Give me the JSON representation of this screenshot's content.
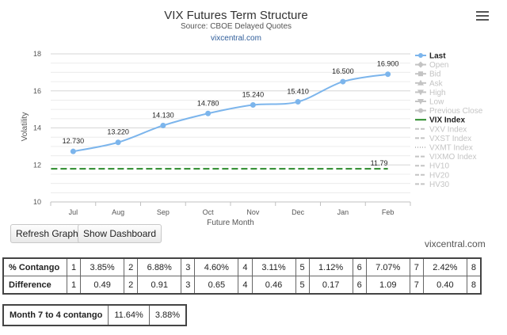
{
  "chart_data": {
    "type": "line",
    "title": "VIX Futures Term Structure",
    "subtitle": "Source: CBOE Delayed Quotes",
    "source_link": "vixcentral.com",
    "xlabel": "Future Month",
    "ylabel": "Volatility",
    "categories": [
      "Jul",
      "Aug",
      "Sep",
      "Oct",
      "Nov",
      "Dec",
      "Jan",
      "Feb"
    ],
    "ylim": [
      10,
      18
    ],
    "yticks": [
      10,
      12,
      14,
      16,
      18
    ],
    "grid": true,
    "legend_position": "right",
    "series": [
      {
        "name": "Last",
        "values": [
          12.73,
          13.22,
          14.13,
          14.78,
          15.24,
          15.41,
          16.5,
          16.9
        ],
        "labels": [
          "12.730",
          "13.220",
          "14.130",
          "14.780",
          "15.240",
          "15.410",
          "16.500",
          "16.900"
        ],
        "color": "#7cb5ec"
      },
      {
        "name": "VIX Index",
        "values": [
          11.79,
          11.79,
          11.79,
          11.79,
          11.79,
          11.79,
          11.79,
          11.79
        ],
        "label": "11.79",
        "color": "#2b8a2b"
      }
    ],
    "legend": [
      {
        "name": "Last",
        "enabled": true,
        "color": "#7cb5ec",
        "symbol": "circle-line"
      },
      {
        "name": "Open",
        "enabled": false,
        "symbol": "diamond-line"
      },
      {
        "name": "Bid",
        "enabled": false,
        "symbol": "square-line"
      },
      {
        "name": "Ask",
        "enabled": false,
        "symbol": "triangle-line"
      },
      {
        "name": "High",
        "enabled": false,
        "symbol": "triangle-down-line"
      },
      {
        "name": "Low",
        "enabled": false,
        "symbol": "triangle-down-line"
      },
      {
        "name": "Previous Close",
        "enabled": false,
        "symbol": "circle-line"
      },
      {
        "name": "VIX Index",
        "enabled": true,
        "color": "#2b8a2b",
        "symbol": "dash"
      },
      {
        "name": "VXV Index",
        "enabled": false,
        "symbol": "dash"
      },
      {
        "name": "VXST Index",
        "enabled": false,
        "symbol": "dash"
      },
      {
        "name": "VXMT Index",
        "enabled": false,
        "symbol": "dot"
      },
      {
        "name": "VIXMO Index",
        "enabled": false,
        "symbol": "dash"
      },
      {
        "name": "HV10",
        "enabled": false,
        "symbol": "dash"
      },
      {
        "name": "HV20",
        "enabled": false,
        "symbol": "dash"
      },
      {
        "name": "HV30",
        "enabled": false,
        "symbol": "dash"
      }
    ]
  },
  "icons": {
    "menu": "hamburger-menu-icon"
  },
  "buttons": {
    "refresh": "Refresh Graph",
    "dashboard": "Show Dashboard"
  },
  "credit": "vixcentral.com",
  "table": {
    "contango_label": "% Contango",
    "contango": [
      {
        "n": "1",
        "v": "3.85%"
      },
      {
        "n": "2",
        "v": "6.88%"
      },
      {
        "n": "3",
        "v": "4.60%"
      },
      {
        "n": "4",
        "v": "3.11%"
      },
      {
        "n": "5",
        "v": "1.12%"
      },
      {
        "n": "6",
        "v": "7.07%"
      },
      {
        "n": "7",
        "v": "2.42%"
      },
      {
        "n": "8",
        "v": ""
      }
    ],
    "difference_label": "Difference",
    "difference": [
      {
        "n": "1",
        "v": "0.49"
      },
      {
        "n": "2",
        "v": "0.91"
      },
      {
        "n": "3",
        "v": "0.65"
      },
      {
        "n": "4",
        "v": "0.46"
      },
      {
        "n": "5",
        "v": "0.17"
      },
      {
        "n": "6",
        "v": "1.09"
      },
      {
        "n": "7",
        "v": "0.40"
      },
      {
        "n": "8",
        "v": ""
      }
    ]
  },
  "summary": {
    "label": "Month 7 to 4 contango",
    "value1": "11.64%",
    "value2": "3.88%"
  }
}
